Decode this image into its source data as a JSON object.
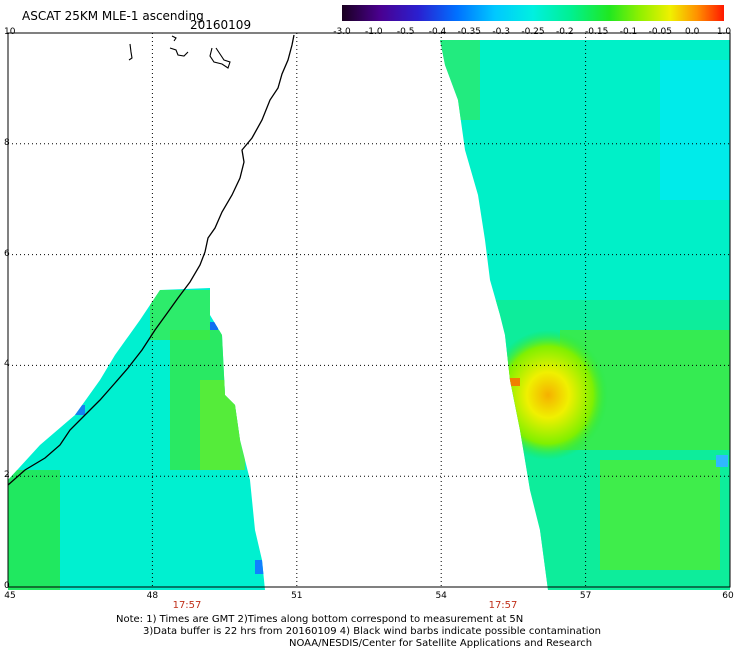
{
  "header": {
    "title": "ASCAT 25KM MLE-1 ascending",
    "date": "20160109"
  },
  "colorbar": {
    "ticks": [
      "-3.0",
      "-1.0",
      "-0.5",
      "-0.4",
      "-0.35",
      "-0.3",
      "-0.25",
      "-0.2",
      "-0.15",
      "-0.1",
      "-0.05",
      "0.0",
      "1.0"
    ],
    "colors": [
      "#1a0020",
      "#4a0090",
      "#2a20d0",
      "#0060ff",
      "#00a8ff",
      "#00e6f0",
      "#00f0b0",
      "#00e860",
      "#20e000",
      "#90f000",
      "#f0f000",
      "#ff9000",
      "#ff2000"
    ]
  },
  "map": {
    "lon_ticks": [
      "45",
      "48",
      "51",
      "54",
      "57",
      "60"
    ],
    "lat_ticks": [
      "0",
      "2",
      "4",
      "6",
      "8",
      "10"
    ],
    "pass_times": [
      "17:57",
      "17:57"
    ]
  },
  "notes": {
    "line1": "Note: 1) Times are GMT 2)Times along bottom correspond to measurement at 5N",
    "line2": "3)Data buffer is 22 hrs from 20160109 4) Black wind barbs indicate possible contamination",
    "line3": "NOAA/NESDIS/Center for Satellite Applications and Research"
  }
}
